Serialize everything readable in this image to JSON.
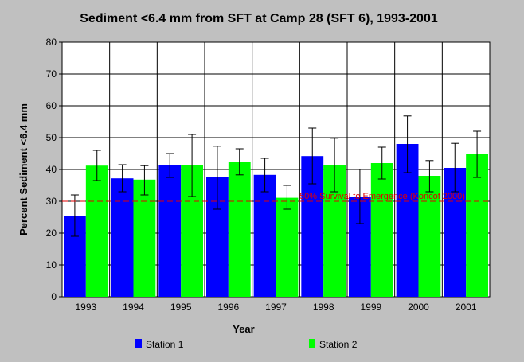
{
  "chart_data": {
    "type": "bar",
    "title": "Sediment <6.4 mm from SFT at Camp 28 (SFT 6), 1993-2001",
    "xlabel": "Year",
    "ylabel": "Percent Sediment <6.4 mm",
    "ylim": [
      0,
      80
    ],
    "yticks": [
      0,
      10,
      20,
      30,
      40,
      50,
      60,
      70,
      80
    ],
    "grid": true,
    "legend_position": "bottom",
    "categories": [
      "1993",
      "1994",
      "1995",
      "1996",
      "1997",
      "1998",
      "1999",
      "2000",
      "2001"
    ],
    "series": [
      {
        "name": "Station 1",
        "color": "#0000ff",
        "values": [
          25.5,
          37.2,
          41.3,
          37.5,
          38.3,
          44.2,
          31.5,
          48.0,
          40.5
        ],
        "error_low": [
          19.0,
          33.0,
          37.5,
          27.5,
          33.0,
          35.5,
          23.0,
          39.0,
          33.0
        ],
        "error_high": [
          32.0,
          41.5,
          45.0,
          47.3,
          43.5,
          53.0,
          40.0,
          56.8,
          48.2
        ]
      },
      {
        "name": "Station 2",
        "color": "#00ff00",
        "values": [
          41.2,
          36.8,
          41.3,
          42.4,
          31.1,
          41.3,
          42.0,
          38.0,
          44.8
        ],
        "error_low": [
          36.5,
          32.0,
          31.5,
          38.3,
          27.5,
          33.0,
          37.0,
          33.0,
          37.5
        ],
        "error_high": [
          46.0,
          41.2,
          51.0,
          46.5,
          35.0,
          49.8,
          47.0,
          42.8,
          52.0
        ]
      }
    ],
    "reference_line": {
      "value": 30,
      "label": "50% Survival to Emergence (Koncof 2000)",
      "color": "#e00000"
    }
  }
}
